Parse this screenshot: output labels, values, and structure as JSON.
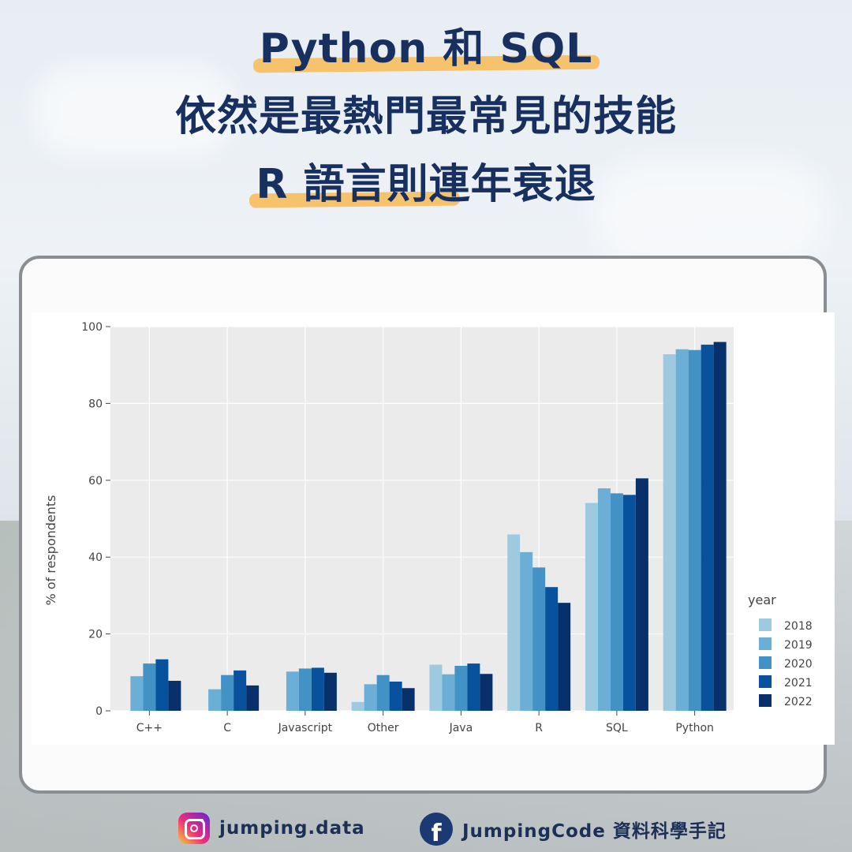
{
  "headline": {
    "line1": "Python 和 SQL",
    "line2": "依然是最熱門最常見的技能",
    "line3": "R 語言則連年衰退"
  },
  "footer": {
    "instagram_handle": "jumping.data",
    "facebook_name": "JumpingCode 資料科學手記",
    "facebook_glyph": "f"
  },
  "colors": {
    "title": "#17305f",
    "highlight": "#f6c26b",
    "plot_bg": "#ebebeb",
    "grid": "#ffffff"
  },
  "chart_data": {
    "type": "bar",
    "categories": [
      "C++",
      "C",
      "Javascript",
      "Other",
      "Java",
      "R",
      "SQL",
      "Python"
    ],
    "ylabel": "% of respondents",
    "xlabel": "",
    "ylim": [
      0,
      100
    ],
    "yticks": [
      0,
      20,
      40,
      60,
      80,
      100
    ],
    "grid": true,
    "legend": {
      "title": "year",
      "position": "right"
    },
    "series": [
      {
        "name": "2018",
        "color": "#9ecae1",
        "values": [
          0,
          0,
          0,
          2.3,
          12.0,
          45.9,
          54.1,
          92.8
        ]
      },
      {
        "name": "2019",
        "color": "#6baed6",
        "values": [
          9.0,
          5.6,
          10.2,
          6.9,
          9.5,
          41.3,
          57.9,
          94.1
        ]
      },
      {
        "name": "2020",
        "color": "#4292c6",
        "values": [
          12.3,
          9.3,
          11.0,
          9.3,
          11.7,
          37.3,
          56.6,
          93.9
        ]
      },
      {
        "name": "2021",
        "color": "#08519c",
        "values": [
          13.4,
          10.5,
          11.2,
          7.6,
          12.3,
          32.2,
          56.2,
          95.3
        ]
      },
      {
        "name": "2022",
        "color": "#08306b",
        "values": [
          7.8,
          6.6,
          9.9,
          5.9,
          9.6,
          28.1,
          60.5,
          96.0
        ]
      }
    ]
  }
}
